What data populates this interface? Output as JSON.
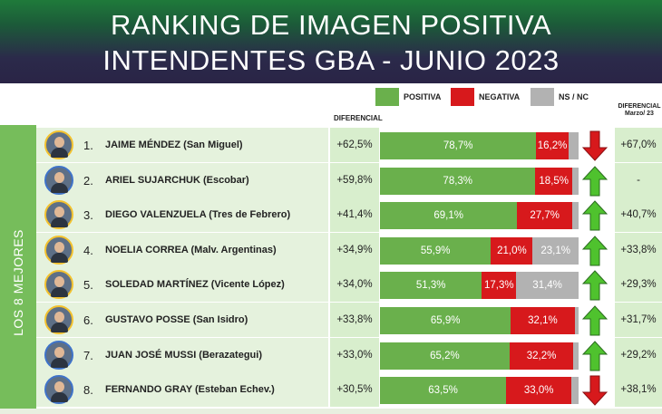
{
  "header": {
    "line1": "RANKING DE IMAGEN POSITIVA",
    "line2": "INTENDENTES GBA - JUNIO 2023"
  },
  "legend": {
    "positiva": "POSITIVA",
    "negativa": "NEGATIVA",
    "nsnc": "NS / NC"
  },
  "colors": {
    "positiva": "#6ab04c",
    "negativa": "#d7191c",
    "nsnc": "#b2b2b2",
    "sidebar": "#76bd5b"
  },
  "columns": {
    "diferencial": "DIFERENCIAL",
    "diferencial_marzo_1": "DIFERENCIAL",
    "diferencial_marzo_2": "Marzo/ 23"
  },
  "sidebar_label": "LOS 8 MEJORES",
  "chart_data": {
    "type": "bar",
    "stacked": true,
    "orientation": "horizontal",
    "title": "RANKING DE IMAGEN POSITIVA - INTENDENTES GBA - JUNIO 2023",
    "xlim": [
      0,
      100
    ],
    "legend": [
      "POSITIVA",
      "NEGATIVA",
      "NS / NC"
    ],
    "rows": [
      {
        "rank": "1.",
        "name": "JAIME MÉNDEZ (San Miguel)",
        "diferencial": "+62,5%",
        "positiva": 78.7,
        "positiva_label": "78,7%",
        "negativa": 16.2,
        "negativa_label": "16,2%",
        "nsnc": 5.1,
        "nsnc_label": "",
        "trend": "down",
        "diferencial_marzo": "+67,0%"
      },
      {
        "rank": "2.",
        "name": "ARIEL SUJARCHUK (Escobar)",
        "diferencial": "+59,8%",
        "positiva": 78.3,
        "positiva_label": "78,3%",
        "negativa": 18.5,
        "negativa_label": "18,5%",
        "nsnc": 3.2,
        "nsnc_label": "",
        "trend": "up",
        "diferencial_marzo": "-"
      },
      {
        "rank": "3.",
        "name": "DIEGO VALENZUELA (Tres de Febrero)",
        "diferencial": "+41,4%",
        "positiva": 69.1,
        "positiva_label": "69,1%",
        "negativa": 27.7,
        "negativa_label": "27,7%",
        "nsnc": 3.2,
        "nsnc_label": "",
        "trend": "up",
        "diferencial_marzo": "+40,7%"
      },
      {
        "rank": "4.",
        "name": "NOELIA CORREA (Malv. Argentinas)",
        "diferencial": "+34,9%",
        "positiva": 55.9,
        "positiva_label": "55,9%",
        "negativa": 21.0,
        "negativa_label": "21,0%",
        "nsnc": 23.1,
        "nsnc_label": "23,1%",
        "trend": "up",
        "diferencial_marzo": "+33,8%"
      },
      {
        "rank": "5.",
        "name": "SOLEDAD MARTÍNEZ (Vicente López)",
        "diferencial": "+34,0%",
        "positiva": 51.3,
        "positiva_label": "51,3%",
        "negativa": 17.3,
        "negativa_label": "17,3%",
        "nsnc": 31.4,
        "nsnc_label": "31,4%",
        "trend": "up",
        "diferencial_marzo": "+29,3%"
      },
      {
        "rank": "6.",
        "name": "GUSTAVO POSSE (San Isidro)",
        "diferencial": "+33,8%",
        "positiva": 65.9,
        "positiva_label": "65,9%",
        "negativa": 32.1,
        "negativa_label": "32,1%",
        "nsnc": 2.0,
        "nsnc_label": "",
        "trend": "up",
        "diferencial_marzo": "+31,7%"
      },
      {
        "rank": "7.",
        "name": "JUAN JOSÉ MUSSI (Berazategui)",
        "diferencial": "+33,0%",
        "positiva": 65.2,
        "positiva_label": "65,2%",
        "negativa": 32.2,
        "negativa_label": "32,2%",
        "nsnc": 2.6,
        "nsnc_label": "",
        "trend": "up",
        "diferencial_marzo": "+29,2%"
      },
      {
        "rank": "8.",
        "name": "FERNANDO GRAY (Esteban Echev.)",
        "diferencial": "+30,5%",
        "positiva": 63.5,
        "positiva_label": "63,5%",
        "negativa": 33.0,
        "negativa_label": "33,0%",
        "nsnc": 3.5,
        "nsnc_label": "",
        "trend": "down",
        "diferencial_marzo": "+38,1%"
      }
    ]
  }
}
